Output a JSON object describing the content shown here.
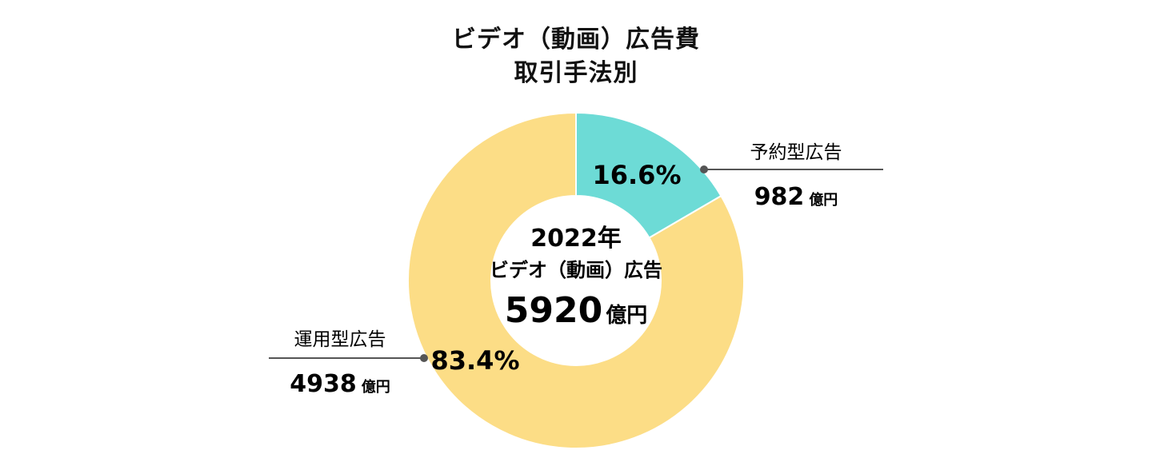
{
  "title": {
    "line1": "ビデオ（動画）広告費",
    "line2": "取引手法別"
  },
  "center": {
    "year": "2022年",
    "label": "ビデオ（動画）広告",
    "total_value": "5920",
    "total_unit": "億円"
  },
  "chart_data": {
    "type": "pie",
    "title": "ビデオ（動画）広告費 取引手法別",
    "unit": "億円",
    "total": 5920,
    "series": [
      {
        "name": "予約型広告",
        "value": 982,
        "percent": 16.6,
        "percent_label": "16.6%",
        "value_label": "982",
        "unit_label": "億円",
        "color": "#6ddbd6"
      },
      {
        "name": "運用型広告",
        "value": 4938,
        "percent": 83.4,
        "percent_label": "83.4%",
        "value_label": "4938",
        "unit_label": "億円",
        "color": "#fcdd86"
      }
    ]
  },
  "colors": {
    "leader": "#555555",
    "text": "#111111"
  }
}
